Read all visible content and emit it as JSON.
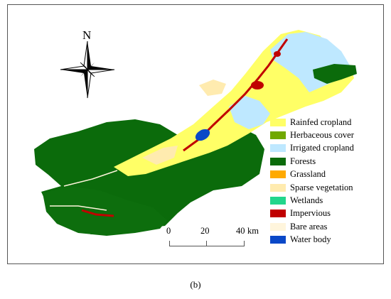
{
  "map": {
    "north_label": "N",
    "legend": [
      {
        "label": "Rainfed cropland",
        "color": "#ffff66"
      },
      {
        "label": "Herbaceous cover",
        "color": "#70a800"
      },
      {
        "label": "Irrigated cropland",
        "color": "#bee8ff"
      },
      {
        "label": "Forests",
        "color": "#0b6b0b"
      },
      {
        "label": "Grassland",
        "color": "#ffaa00"
      },
      {
        "label": "Sparse vegetation",
        "color": "#ffebaf"
      },
      {
        "label": "Wetlands",
        "color": "#22d68c"
      },
      {
        "label": "Impervious",
        "color": "#c00000"
      },
      {
        "label": "Bare areas",
        "color": "#fff5dc"
      },
      {
        "label": "Water body",
        "color": "#0a48c8"
      }
    ],
    "scale": {
      "ticks": [
        "0",
        "20",
        "40"
      ],
      "unit": "km"
    }
  },
  "caption": "(b)"
}
